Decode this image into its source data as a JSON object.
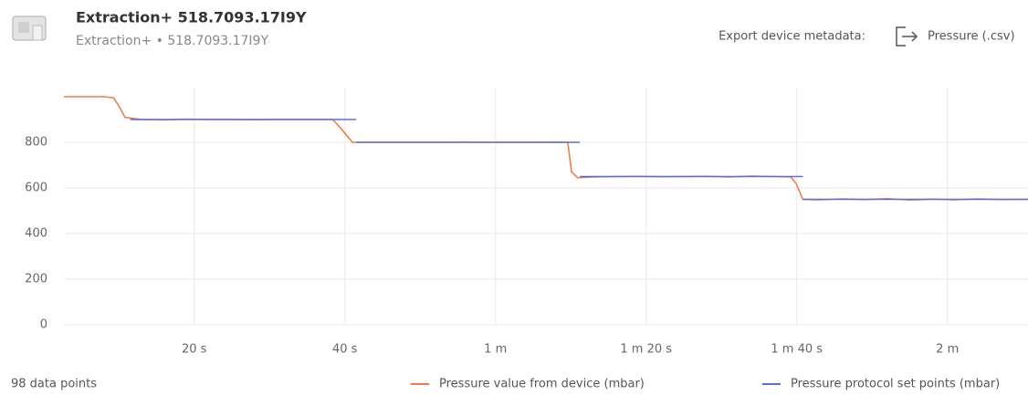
{
  "header": {
    "title": "Extraction+ 518.7093.17I9Y",
    "subtitle": "Extraction+ • 518.7093.17I9Y",
    "export_label": "Export device metadata:",
    "export_link": "Pressure (.csv)"
  },
  "footer": {
    "points": "98 data points"
  },
  "chart_data": {
    "type": "line",
    "xlim": [
      2.7,
      130.7
    ],
    "ylim": [
      0,
      1040
    ],
    "xticks": [
      {
        "value": 20,
        "label": "20 s"
      },
      {
        "value": 40,
        "label": "40 s"
      },
      {
        "value": 60,
        "label": "1 m"
      },
      {
        "value": 80,
        "label": "1 m 20 s"
      },
      {
        "value": 100,
        "label": "1 m 40 s"
      },
      {
        "value": 120,
        "label": "2 m"
      }
    ],
    "yticks": [
      0,
      200,
      400,
      600,
      800
    ],
    "grid": true,
    "series": [
      {
        "name": "Pressure value from device (mbar)",
        "color": "#f07c4a",
        "x": [
          2.7,
          5,
          8,
          9.3,
          10,
          10.8,
          13,
          16,
          19,
          22,
          25,
          28,
          31,
          34,
          37,
          38.4,
          39.5,
          41,
          44,
          48,
          52,
          56,
          60,
          64,
          68,
          69.6,
          70.1,
          70.9,
          73,
          76,
          79,
          82,
          85,
          88,
          91,
          94,
          97,
          99.2,
          99.9,
          100.8,
          103,
          106,
          109,
          112,
          115,
          118,
          121,
          124,
          127,
          130.7
        ],
        "values": [
          1000,
          1000,
          1000,
          995,
          960,
          910,
          900,
          898,
          902,
          900,
          900,
          899,
          900,
          900,
          900,
          900,
          860,
          800,
          800,
          800,
          800,
          801,
          800,
          800,
          801,
          800,
          670,
          645,
          648,
          650,
          651,
          649,
          650,
          651,
          648,
          652,
          650,
          648,
          620,
          550,
          548,
          552,
          549,
          553,
          547,
          551,
          548,
          552,
          549,
          550
        ]
      },
      {
        "name": "Pressure protocol set points (mbar)",
        "color": "#5b6fd6",
        "x": [
          11.5,
          41.5,
          null,
          41.5,
          71.2,
          null,
          71.2,
          100.8,
          null,
          100.8,
          130.7
        ],
        "values": [
          900,
          900,
          null,
          800,
          800,
          null,
          650,
          650,
          null,
          550,
          550
        ]
      }
    ]
  }
}
